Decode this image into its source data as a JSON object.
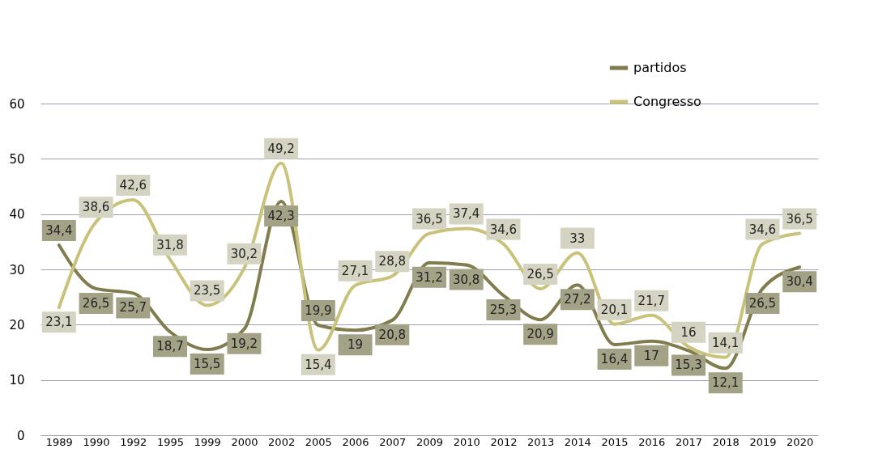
{
  "chart_data": {
    "type": "line",
    "categories": [
      "1989",
      "1990",
      "1992",
      "1995",
      "1999",
      "2000",
      "2002",
      "2005",
      "2006",
      "2007",
      "2009",
      "2010",
      "2012",
      "2013",
      "2014",
      "2015",
      "2016",
      "2017",
      "2018",
      "2019",
      "2020"
    ],
    "series": [
      {
        "name": "partidos",
        "color": "#817c4e",
        "values": [
          34.4,
          26.5,
          25.7,
          18.7,
          15.5,
          19.2,
          42.3,
          19.9,
          19,
          20.8,
          31.2,
          30.8,
          25.3,
          20.9,
          27.2,
          16.4,
          17,
          15.3,
          12.1,
          26.5,
          30.4
        ],
        "value_labels": [
          "34,4",
          "26,5",
          "25,7",
          "18,7",
          "15,5",
          "19,2",
          "42,3",
          "19,9",
          "19",
          "20,8",
          "31,2",
          "30,8",
          "25,3",
          "20,9",
          "27,2",
          "16,4",
          "17",
          "15,3",
          "12,1",
          "26,5",
          "30,4"
        ]
      },
      {
        "name": "Congresso",
        "color": "#c9c27a",
        "values": [
          23.1,
          38.6,
          42.6,
          31.8,
          23.5,
          30.2,
          49.2,
          15.4,
          27.1,
          28.8,
          36.5,
          37.4,
          34.6,
          26.5,
          33,
          20.1,
          21.7,
          16,
          14.1,
          34.6,
          36.5
        ],
        "value_labels": [
          "23,1",
          "38,6",
          "42,6",
          "31,8",
          "23,5",
          "30,2",
          "49,2",
          "15,4",
          "27,1",
          "28,8",
          "36,5",
          "37,4",
          "34,6",
          "26,5",
          "33",
          "20,1",
          "21,7",
          "16",
          "14,1",
          "34,6",
          "36,5"
        ]
      }
    ],
    "ylim": [
      0,
      60
    ],
    "yticks": [
      0,
      10,
      20,
      30,
      40,
      50,
      60
    ],
    "grid": "y",
    "legend": "top right",
    "marker": "none",
    "line_style": "solid"
  }
}
